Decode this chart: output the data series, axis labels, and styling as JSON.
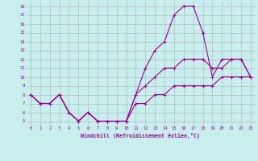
{
  "xlabel": "Windchill (Refroidissement éolien,°C)",
  "background_color": "#c8eeed",
  "grid_color": "#b0b0b0",
  "line_color": "#990099",
  "hours": [
    0,
    1,
    2,
    3,
    4,
    5,
    6,
    7,
    8,
    9,
    10,
    11,
    12,
    13,
    14,
    15,
    16,
    17,
    18,
    19,
    20,
    21,
    22,
    23
  ],
  "temp": [
    8,
    7,
    7,
    8,
    6,
    5,
    6,
    5,
    5,
    5,
    5,
    8,
    11,
    13,
    14,
    17,
    18,
    18,
    15,
    10,
    12,
    12,
    12,
    10
  ],
  "windchill": [
    8,
    7,
    7,
    8,
    6,
    5,
    6,
    5,
    5,
    5,
    5,
    7,
    7,
    8,
    8,
    9,
    9,
    9,
    9,
    9,
    10,
    10,
    10,
    10
  ],
  "apparent": [
    8,
    7,
    7,
    8,
    6,
    5,
    6,
    5,
    5,
    5,
    5,
    8,
    9,
    10,
    11,
    11,
    12,
    12,
    12,
    11,
    11,
    12,
    12,
    10
  ],
  "ylim_min": 4.5,
  "ylim_max": 18.5,
  "xlim_min": -0.5,
  "xlim_max": 23.5
}
